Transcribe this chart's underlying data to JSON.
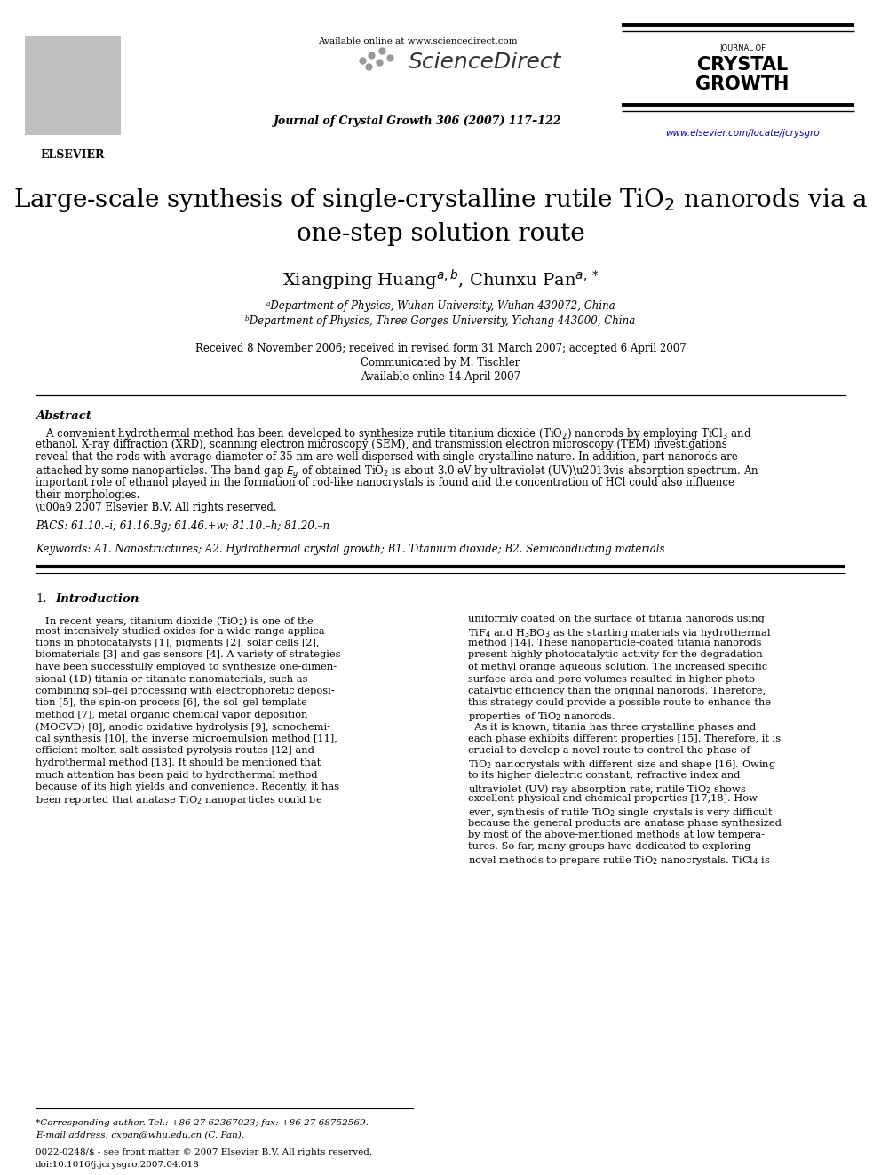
{
  "bg_color": "#ffffff",
  "header": {
    "available_online": "Available online at www.sciencedirect.com",
    "journal_info": "Journal of Crystal Growth 306 (2007) 117–122",
    "website": "www.elsevier.com/locate/jcrysgro"
  },
  "affil_a": "ᵃDepartment of Physics, Wuhan University, Wuhan 430072, China",
  "affil_b": "ᵇDepartment of Physics, Three Gorges University, Yichang 443000, China",
  "received": "Received 8 November 2006; received in revised form 31 March 2007; accepted 6 April 2007",
  "communicated": "Communicated by M. Tischler",
  "available": "Available online 14 April 2007",
  "pacs": "PACS: 61.10.–i; 61.16.Bg; 61.46.+w; 81.10.–h; 81.20.–n",
  "keywords": "Keywords: A1. Nanostructures; A2. Hydrothermal crystal growth; B1. Titanium dioxide; B2. Semiconducting materials"
}
